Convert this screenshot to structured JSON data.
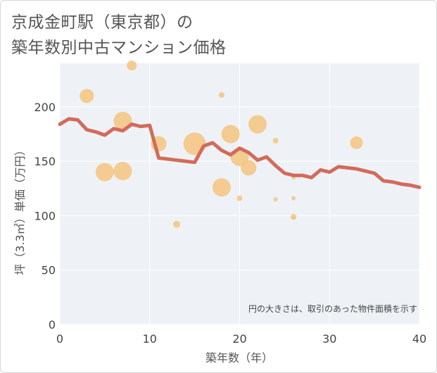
{
  "chart_data": {
    "type": "scatter",
    "title_line1": "京成金町駅（東京都）の",
    "title_line2": "築年数別中古マンション価格",
    "xlabel": "築年数（年）",
    "ylabel": "坪（3.3㎡）単価（万円）",
    "xlim": [
      0,
      40
    ],
    "ylim": [
      0,
      240
    ],
    "x_ticks": [
      0,
      10,
      20,
      30,
      40
    ],
    "y_ticks": [
      0,
      50,
      100,
      150,
      200
    ],
    "grid": true,
    "note": "円の大きさは、取引のあった物件面積を示す",
    "colors": {
      "bubble": "#f5c47e",
      "line": "#d36b5a",
      "plot_bg": "#eef2f6",
      "grid": "#ffffff"
    },
    "bubbles": [
      {
        "x": 3,
        "y": 210,
        "r": 10
      },
      {
        "x": 5,
        "y": 140,
        "r": 13
      },
      {
        "x": 7,
        "y": 187,
        "r": 13
      },
      {
        "x": 7,
        "y": 141,
        "r": 13
      },
      {
        "x": 8,
        "y": 238,
        "r": 7
      },
      {
        "x": 11,
        "y": 166,
        "r": 11
      },
      {
        "x": 13,
        "y": 92,
        "r": 5
      },
      {
        "x": 15,
        "y": 166,
        "r": 16
      },
      {
        "x": 18,
        "y": 211,
        "r": 4
      },
      {
        "x": 18,
        "y": 126,
        "r": 13
      },
      {
        "x": 19,
        "y": 175,
        "r": 13
      },
      {
        "x": 20,
        "y": 116,
        "r": 4
      },
      {
        "x": 20,
        "y": 154,
        "r": 13
      },
      {
        "x": 21,
        "y": 144,
        "r": 11
      },
      {
        "x": 22,
        "y": 184,
        "r": 13
      },
      {
        "x": 24,
        "y": 169,
        "r": 4
      },
      {
        "x": 24,
        "y": 115,
        "r": 3
      },
      {
        "x": 26,
        "y": 135,
        "r": 3
      },
      {
        "x": 26,
        "y": 116,
        "r": 3
      },
      {
        "x": 26,
        "y": 99,
        "r": 4
      },
      {
        "x": 26,
        "y": 98,
        "r": 3
      },
      {
        "x": 33,
        "y": 167,
        "r": 9
      }
    ],
    "trend": {
      "x": [
        0,
        1,
        2,
        3,
        4,
        5,
        6,
        7,
        8,
        9,
        10,
        11,
        12,
        13,
        14,
        15,
        16,
        17,
        18,
        19,
        20,
        21,
        22,
        23,
        24,
        25,
        26,
        27,
        28,
        29,
        30,
        31,
        32,
        33,
        34,
        35,
        36,
        37,
        38,
        39,
        40
      ],
      "y": [
        184,
        189,
        188,
        179,
        177,
        174,
        180,
        178,
        184,
        182,
        183,
        153,
        152,
        151,
        150,
        149,
        164,
        167,
        160,
        156,
        162,
        158,
        151,
        154,
        146,
        139,
        137,
        137,
        135,
        142,
        140,
        145,
        144,
        143,
        141,
        139,
        132,
        131,
        129,
        128,
        126
      ]
    }
  }
}
